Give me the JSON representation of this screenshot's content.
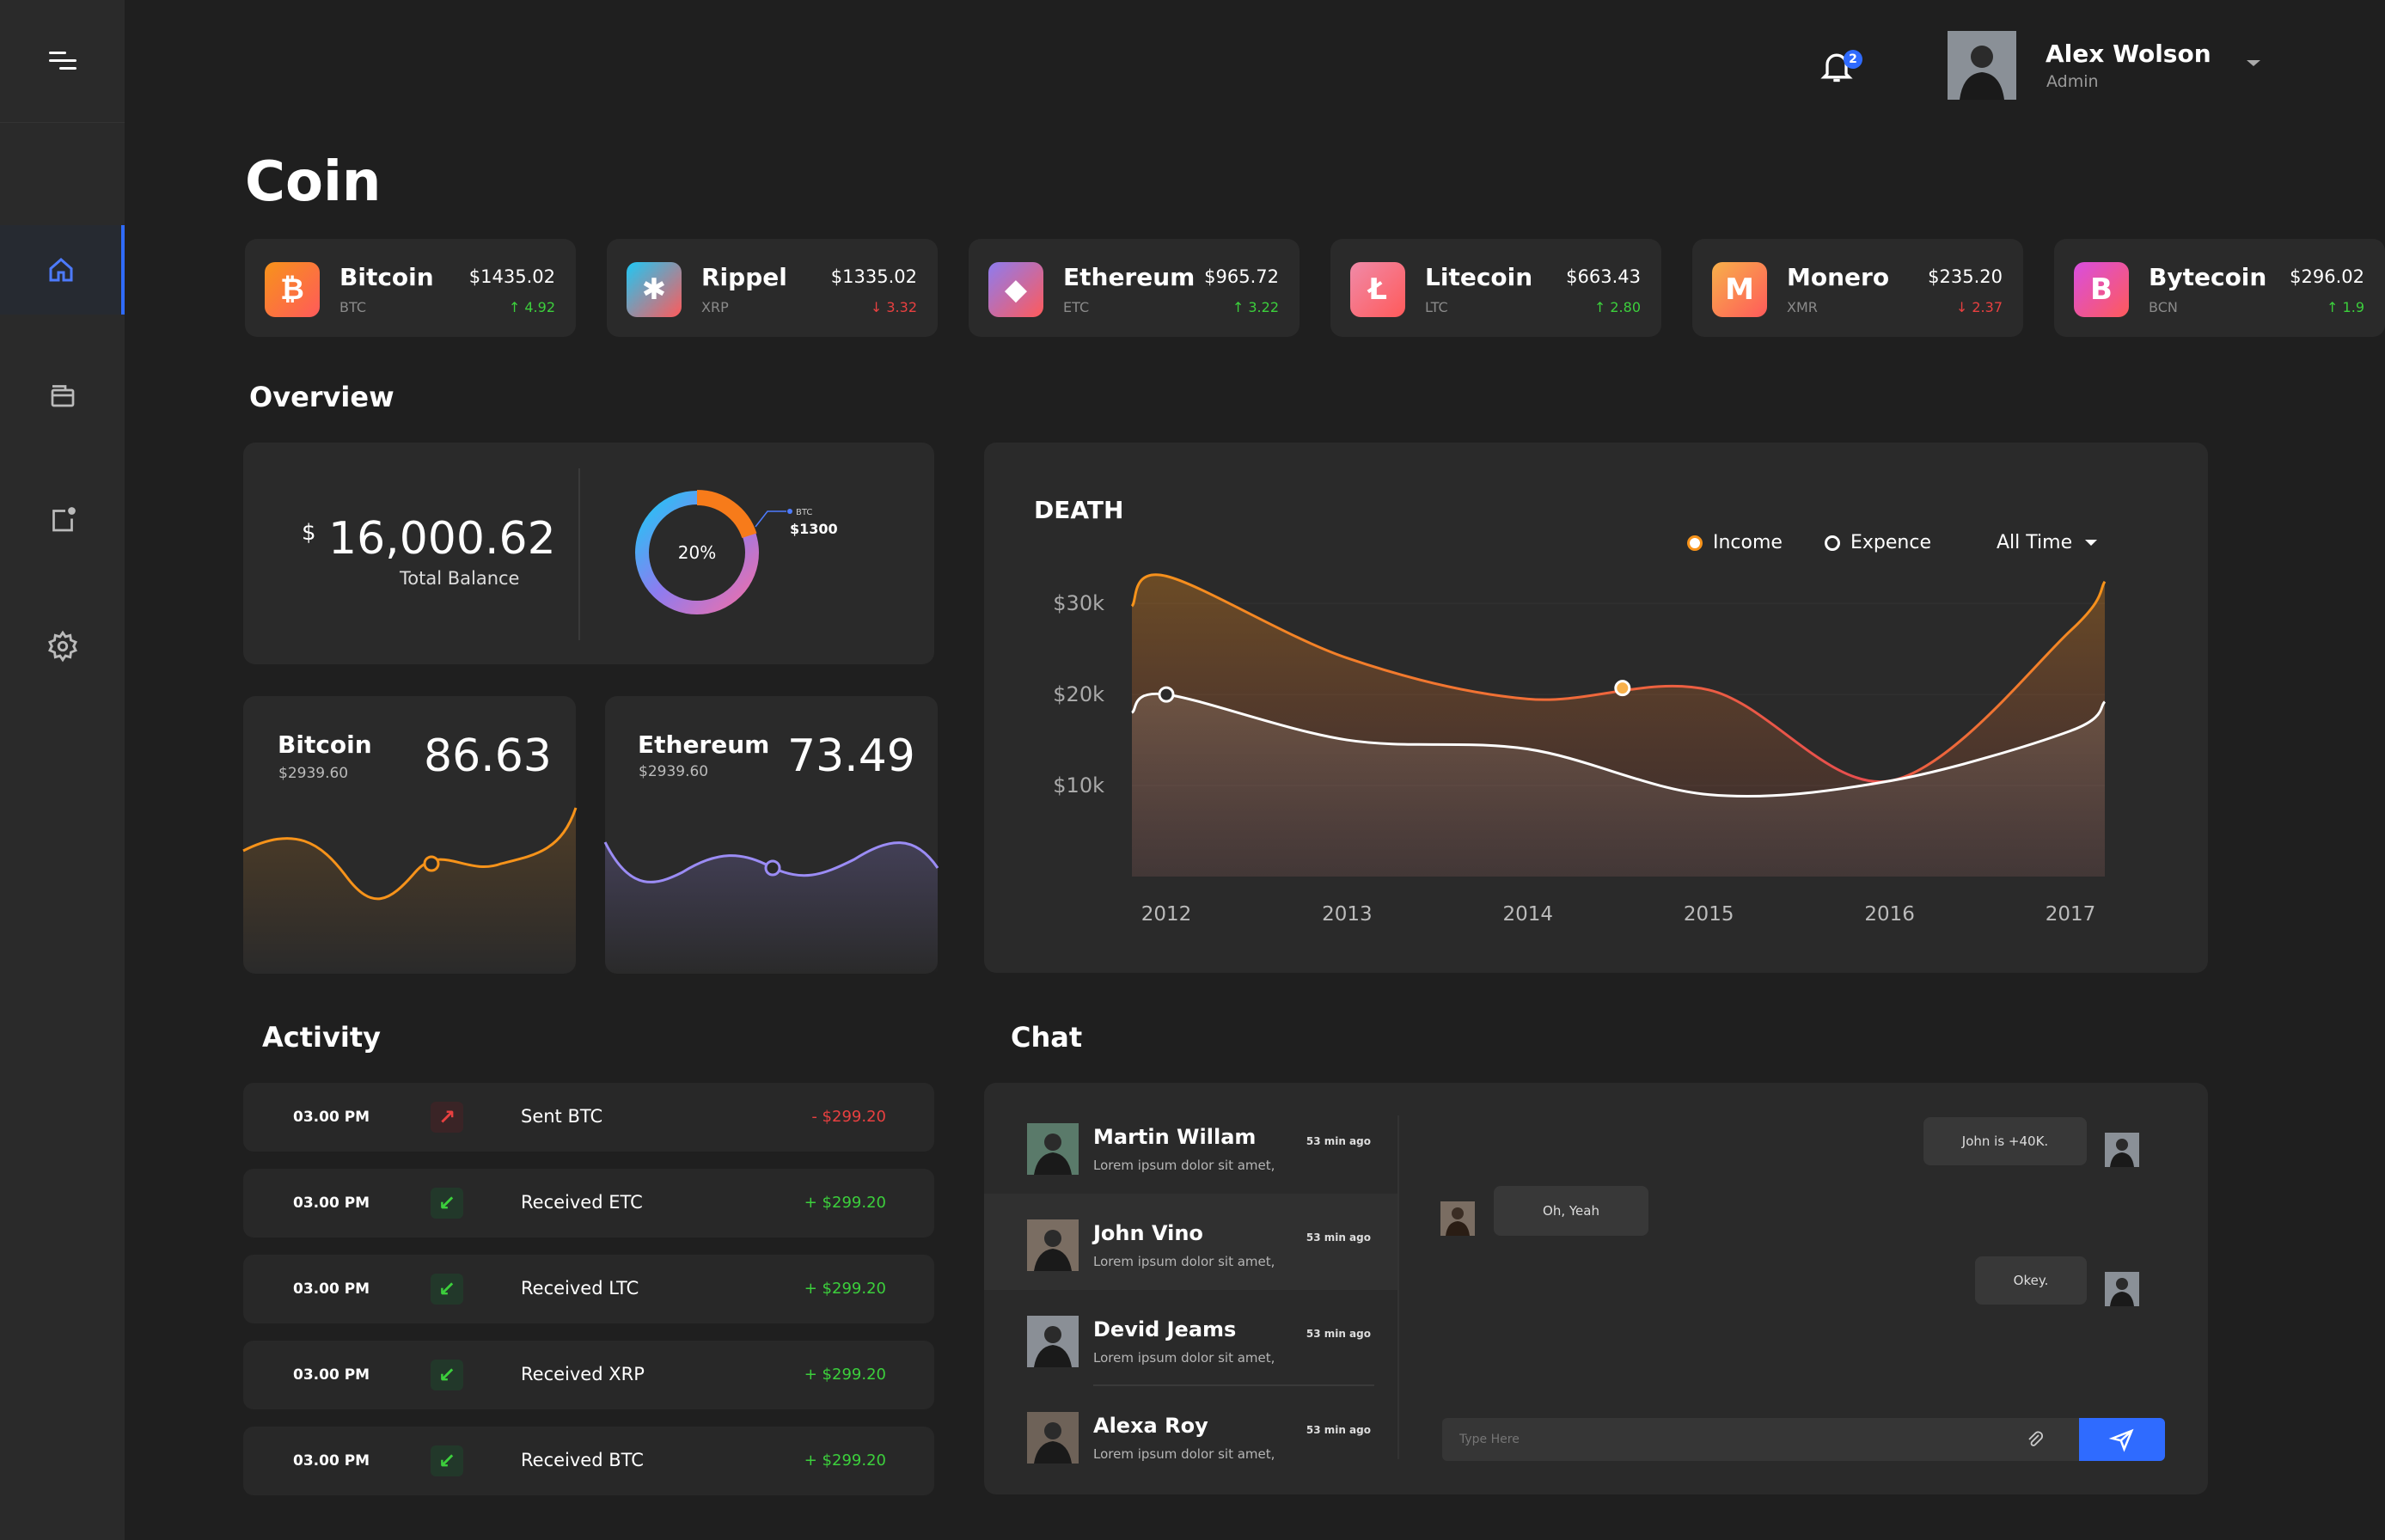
{
  "header": {
    "notification_count": "2",
    "user_name": "Alex Wolson",
    "user_role": "Admin"
  },
  "page_title": "Coin",
  "coins": [
    {
      "name": "Bitcoin",
      "symbol": "BTC",
      "price": "$1435.02",
      "change": "4.92",
      "direction": "up",
      "color": "#f7931a",
      "icon_glyph": "₿"
    },
    {
      "name": "Rippel",
      "symbol": "XRP",
      "price": "$1335.02",
      "change": "3.32",
      "direction": "down",
      "color": "#1ec8f5",
      "icon_glyph": "✱"
    },
    {
      "name": "Ethereum",
      "symbol": "ETC",
      "price": "$965.72",
      "change": "3.22",
      "direction": "up",
      "color": "#8d7cf0",
      "icon_glyph": "◆"
    },
    {
      "name": "Litecoin",
      "symbol": "LTC",
      "price": "$663.43",
      "change": "2.80",
      "direction": "up",
      "color": "#f08aa8",
      "icon_glyph": "Ł"
    },
    {
      "name": "Monero",
      "symbol": "XMR",
      "price": "$235.20",
      "change": "2.37",
      "direction": "down",
      "color": "#f7b04a",
      "icon_glyph": "M"
    },
    {
      "name": "Bytecoin",
      "symbol": "BCN",
      "price": "$296.02",
      "change": "1.9",
      "direction": "up",
      "color": "#d84ee0",
      "icon_glyph": "B"
    }
  ],
  "overview": {
    "title": "Overview",
    "currency_symbol": "$",
    "total_balance": "16,000.62",
    "total_balance_label": "Total Balance",
    "donut_percent": "20%",
    "donut_fraction": 0.2,
    "donut_legend_symbol": "BTC",
    "donut_legend_value": "$1300"
  },
  "mini_charts": [
    {
      "name": "Bitcoin",
      "price": "$2939.60",
      "value": "86.63",
      "line_color": "#f7931a"
    },
    {
      "name": "Ethereum",
      "price": "$2939.60",
      "value": "73.49",
      "line_color": "#9b8cf5"
    }
  ],
  "chart_data": {
    "type": "area",
    "title": "DEATH",
    "categories": [
      "2012",
      "2013",
      "2014",
      "2015",
      "2016",
      "2017"
    ],
    "y_ticks": [
      "$30k",
      "$20k",
      "$10k"
    ],
    "series": [
      {
        "name": "Income",
        "color": "#f7931a",
        "values": [
          33000,
          24000,
          19500,
          20500,
          10500,
          27000
        ]
      },
      {
        "name": "Expence",
        "color": "#ffffff",
        "values": [
          20000,
          15000,
          14000,
          9000,
          10500,
          16000
        ]
      }
    ],
    "legend_position": "top-right",
    "filter_label": "All Time"
  },
  "activity": {
    "title": "Activity",
    "items": [
      {
        "time": "03.00 PM",
        "desc": "Sent BTC",
        "amount": "- $299.20",
        "type": "sent"
      },
      {
        "time": "03.00 PM",
        "desc": "Received ETC",
        "amount": "+ $299.20",
        "type": "received"
      },
      {
        "time": "03.00 PM",
        "desc": "Received LTC",
        "amount": "+ $299.20",
        "type": "received"
      },
      {
        "time": "03.00 PM",
        "desc": "Received XRP",
        "amount": "+ $299.20",
        "type": "received"
      },
      {
        "time": "03.00 PM",
        "desc": "Received BTC",
        "amount": "+ $299.20",
        "type": "received"
      }
    ]
  },
  "chat": {
    "title": "Chat",
    "contacts": [
      {
        "name": "Martin Willam",
        "msg": "Lorem ipsum dolor sit amet,",
        "time": "53 min ago"
      },
      {
        "name": "John Vino",
        "msg": "Lorem ipsum dolor sit amet,",
        "time": "53 min ago"
      },
      {
        "name": "Devid Jeams",
        "msg": "Lorem ipsum dolor sit amet,",
        "time": "53 min ago"
      },
      {
        "name": "Alexa Roy",
        "msg": "Lorem ipsum dolor sit amet,",
        "time": "53 min ago"
      }
    ],
    "messages": [
      "John is +40K.",
      "Oh, Yeah",
      "Okey."
    ],
    "input_placeholder": "Type Here"
  }
}
